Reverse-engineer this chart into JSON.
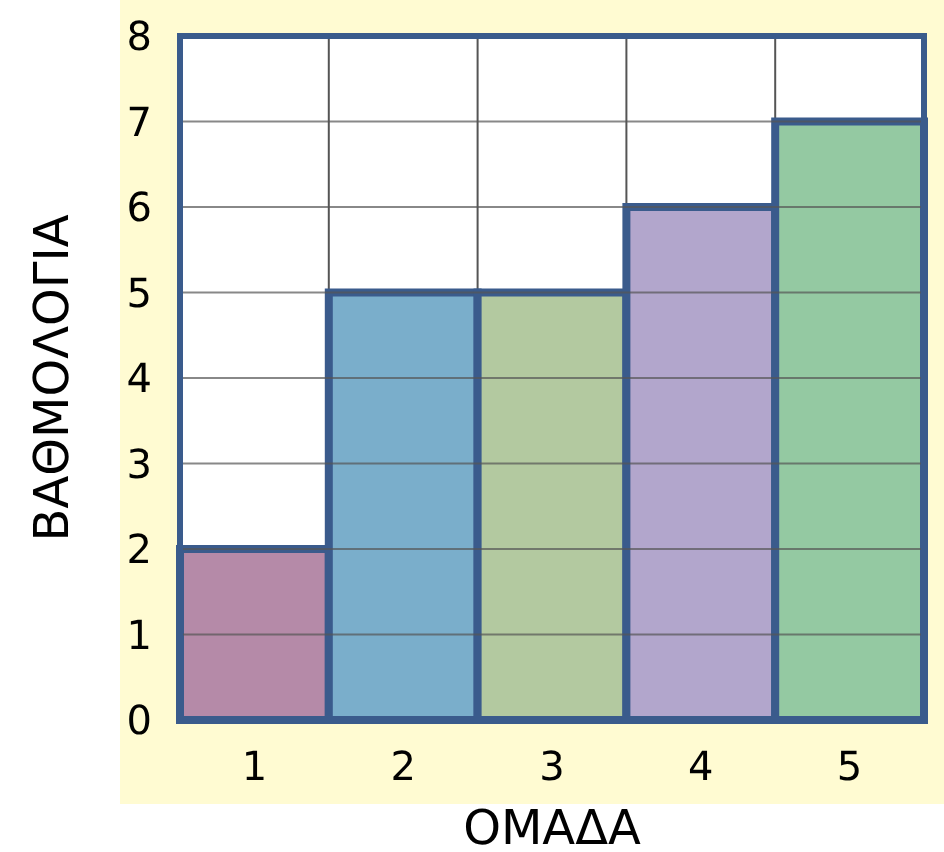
{
  "chart_data": {
    "type": "bar",
    "xlabel": "ΟΜΑΔΑ",
    "ylabel": "ΒΑΘΜΟΛΟΓΙΑ",
    "categories": [
      "1",
      "2",
      "3",
      "4",
      "5"
    ],
    "values": [
      2,
      5,
      5,
      6,
      7
    ],
    "colors": [
      "#b58aa8",
      "#7aaecb",
      "#b3c9a0",
      "#b2a6cc",
      "#94c9a2"
    ],
    "ylim": [
      0,
      8
    ],
    "yticks": [
      0,
      1,
      2,
      3,
      4,
      5,
      6,
      7,
      8
    ],
    "grid": true
  }
}
